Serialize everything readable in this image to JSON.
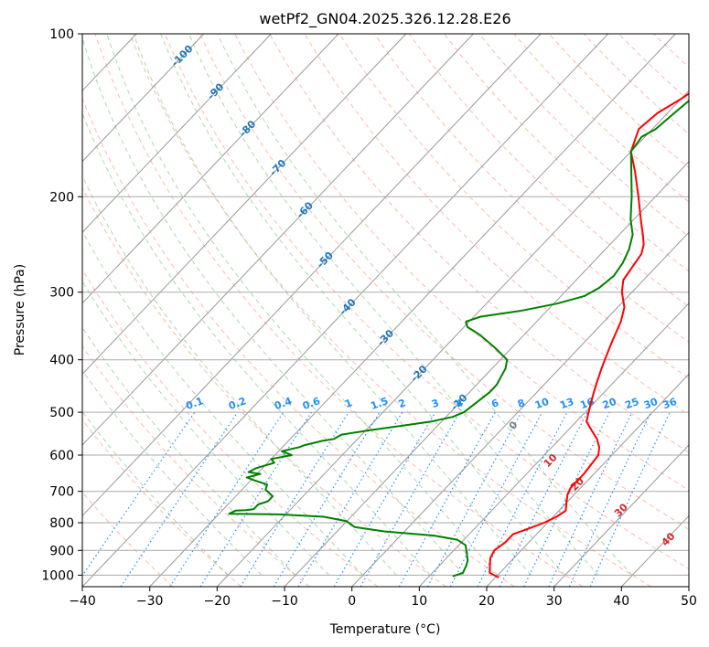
{
  "chart_data": {
    "type": "line",
    "title": "wetPf2_GN04.2025.326.12.28.E26",
    "xlabel": "Temperature (°C)",
    "ylabel": "Pressure (hPa)",
    "xlim": [
      -40,
      50
    ],
    "ylim": [
      1050,
      100
    ],
    "y_scale": "log",
    "grid": true,
    "x_ticks": [
      -40,
      -30,
      -20,
      -10,
      0,
      10,
      20,
      30,
      40,
      50
    ],
    "y_ticks": [
      100,
      200,
      300,
      400,
      500,
      600,
      700,
      800,
      900,
      1000
    ],
    "x_tick_labels": [
      "−40",
      "−30",
      "−20",
      "−10",
      "0",
      "10",
      "20",
      "30",
      "40",
      "50"
    ],
    "y_tick_labels": [
      "100",
      "200",
      "300",
      "400",
      "500",
      "600",
      "700",
      "800",
      "900",
      "1000"
    ],
    "isotherm_labels": [
      "-100",
      "-90",
      "-80",
      "-70",
      "-60",
      "-50",
      "-40",
      "-30",
      "-20",
      "-10"
    ],
    "mixing_ratio_labels": [
      "0.1",
      "0.2",
      "0.4",
      "0.6",
      "1",
      "1.5",
      "2",
      "3",
      "4",
      "6",
      "8",
      "10",
      "13",
      "16",
      "20",
      "25",
      "30",
      "36"
    ],
    "moist_adiabat_labels": [
      "0",
      "10",
      "20",
      "30",
      "40"
    ],
    "colors": {
      "temperature": "#ff0000",
      "dewpoint": "#008000",
      "isotherm_label": "#1f77b4",
      "mixing_ratio": "#1e90ff",
      "moist_adiabat_label": "#d62728",
      "moist_zero_label": "#808080",
      "dry_adiabat": "#ff6347",
      "moist_adiabat": "#2ca02c",
      "grid": "#aaaaaa"
    },
    "series": [
      {
        "values": [
          [
            20.5,
            1010
          ],
          [
            18.5,
            990
          ],
          [
            17.5,
            960
          ],
          [
            16.5,
            930
          ],
          [
            16.0,
            900
          ],
          [
            16.5,
            870
          ],
          [
            16.5,
            840
          ],
          [
            18.0,
            820
          ],
          [
            19.5,
            800
          ],
          [
            20.5,
            780
          ],
          [
            21.0,
            760
          ],
          [
            20.0,
            735
          ],
          [
            19.0,
            710
          ],
          [
            18.5,
            690
          ],
          [
            18.5,
            650
          ],
          [
            18.0,
            600
          ],
          [
            17.0,
            580
          ],
          [
            15.5,
            560
          ],
          [
            13.5,
            540
          ],
          [
            11.5,
            520
          ],
          [
            10.5,
            500
          ],
          [
            9.5,
            480
          ],
          [
            8.5,
            460
          ],
          [
            7.5,
            440
          ],
          [
            6.5,
            420
          ],
          [
            5.5,
            400
          ],
          [
            4.0,
            370
          ],
          [
            2.5,
            340
          ],
          [
            1.0,
            320
          ],
          [
            -1.5,
            300
          ],
          [
            -3.0,
            285
          ],
          [
            -3.5,
            270
          ],
          [
            -4.0,
            255
          ],
          [
            -5.0,
            245
          ],
          [
            -6.5,
            235
          ],
          [
            -9.0,
            220
          ],
          [
            -12.5,
            200
          ],
          [
            -16.5,
            180
          ],
          [
            -20.0,
            165
          ],
          [
            -22.0,
            150
          ],
          [
            -21.5,
            140
          ],
          [
            -20.0,
            132
          ],
          [
            -19.0,
            125
          ],
          [
            -18.5,
            120
          ],
          [
            -18.5,
            115
          ],
          [
            -18.0,
            110
          ],
          [
            -16.0,
            104
          ],
          [
            -14.0,
            100
          ]
        ]
      },
      {
        "values": [
          [
            13.5,
            1005
          ],
          [
            14.5,
            990
          ],
          [
            14.0,
            960
          ],
          [
            13.5,
            940
          ],
          [
            12.5,
            915
          ],
          [
            11.0,
            880
          ],
          [
            9.0,
            860
          ],
          [
            5.0,
            845
          ],
          [
            -3.0,
            830
          ],
          [
            -8.0,
            815
          ],
          [
            -10.0,
            795
          ],
          [
            -14.0,
            780
          ],
          [
            -21.0,
            772
          ],
          [
            -28.5,
            770
          ],
          [
            -28.0,
            760
          ],
          [
            -26.5,
            758
          ],
          [
            -25.5,
            755
          ],
          [
            -25.5,
            740
          ],
          [
            -24.5,
            730
          ],
          [
            -24.5,
            715
          ],
          [
            -25.5,
            705
          ],
          [
            -26.5,
            695
          ],
          [
            -27.0,
            680
          ],
          [
            -29.5,
            668
          ],
          [
            -31.0,
            660
          ],
          [
            -29.5,
            650
          ],
          [
            -31.5,
            645
          ],
          [
            -31.0,
            635
          ],
          [
            -29.0,
            620
          ],
          [
            -30.0,
            610
          ],
          [
            -27.5,
            600
          ],
          [
            -29.5,
            590
          ],
          [
            -27.5,
            580
          ],
          [
            -27.0,
            575
          ],
          [
            -25.0,
            565
          ],
          [
            -23.5,
            560
          ],
          [
            -23.0,
            550
          ],
          [
            -19.5,
            540
          ],
          [
            -15.5,
            530
          ],
          [
            -11.5,
            520
          ],
          [
            -9.0,
            510
          ],
          [
            -8.0,
            500
          ],
          [
            -7.5,
            480
          ],
          [
            -7.0,
            460
          ],
          [
            -7.0,
            445
          ],
          [
            -7.5,
            430
          ],
          [
            -8.0,
            415
          ],
          [
            -9.0,
            400
          ],
          [
            -12.5,
            380
          ],
          [
            -16.5,
            360
          ],
          [
            -19.5,
            348
          ],
          [
            -20.5,
            340
          ],
          [
            -19.0,
            333
          ],
          [
            -14.0,
            325
          ],
          [
            -9.5,
            315
          ],
          [
            -6.5,
            305
          ],
          [
            -5.5,
            295
          ],
          [
            -5.0,
            280
          ],
          [
            -5.5,
            265
          ],
          [
            -6.5,
            250
          ],
          [
            -8.0,
            235
          ],
          [
            -10.5,
            220
          ],
          [
            -13.5,
            200
          ],
          [
            -18.0,
            175
          ],
          [
            -20.0,
            165
          ],
          [
            -20.5,
            155
          ],
          [
            -19.5,
            150
          ],
          [
            -19.0,
            140
          ],
          [
            -18.5,
            132
          ],
          [
            -17.5,
            125
          ],
          [
            -17.5,
            120
          ],
          [
            -16.0,
            112
          ],
          [
            -14.0,
            104
          ],
          [
            -12.5,
            100
          ]
        ]
      }
    ]
  }
}
